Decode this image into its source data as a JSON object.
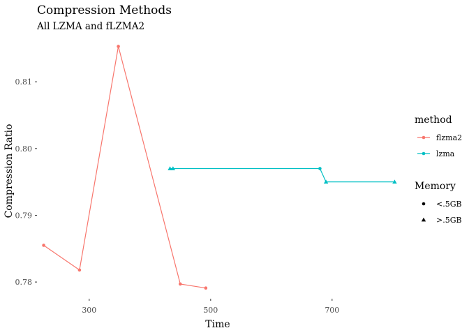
{
  "chart_data": {
    "type": "line",
    "title": "Compression Methods",
    "subtitle": "All LZMA and fLZMA2",
    "xlabel": "Time",
    "ylabel": "Compression Ratio",
    "xlim": [
      214,
      814
    ],
    "ylim": [
      0.7775,
      0.8165
    ],
    "x_ticks": [
      300,
      500,
      700
    ],
    "y_ticks": [
      0.78,
      0.79,
      0.8,
      0.81
    ],
    "grid": false,
    "legend_position": "right",
    "series": [
      {
        "name": "flzma2",
        "color": "#F8766D",
        "points": [
          {
            "x": 225,
            "y": 0.7855,
            "memory": "<.5GB"
          },
          {
            "x": 284,
            "y": 0.7818,
            "memory": "<.5GB"
          },
          {
            "x": 348,
            "y": 0.8153,
            "memory": "<.5GB"
          },
          {
            "x": 450,
            "y": 0.7797,
            "memory": "<.5GB"
          },
          {
            "x": 492,
            "y": 0.7791,
            "memory": "<.5GB"
          }
        ]
      },
      {
        "name": "lzma",
        "color": "#00BFC4",
        "points": [
          {
            "x": 433,
            "y": 0.797,
            "memory": ">.5GB"
          },
          {
            "x": 438,
            "y": 0.797,
            "memory": ">.5GB"
          },
          {
            "x": 680,
            "y": 0.797,
            "memory": "<.5GB"
          },
          {
            "x": 690,
            "y": 0.795,
            "memory": ">.5GB"
          },
          {
            "x": 803,
            "y": 0.795,
            "memory": ">.5GB"
          }
        ]
      }
    ],
    "legends": [
      {
        "title": "method",
        "items": [
          {
            "label": "flzma2",
            "color": "#F8766D",
            "shape": "circle"
          },
          {
            "label": "lzma",
            "color": "#00BFC4",
            "shape": "circle"
          }
        ]
      },
      {
        "title": "Memory",
        "items": [
          {
            "label": "<.5GB",
            "color": "#000000",
            "shape": "circle"
          },
          {
            "label": ">.5GB",
            "color": "#000000",
            "shape": "triangle"
          }
        ]
      }
    ]
  }
}
